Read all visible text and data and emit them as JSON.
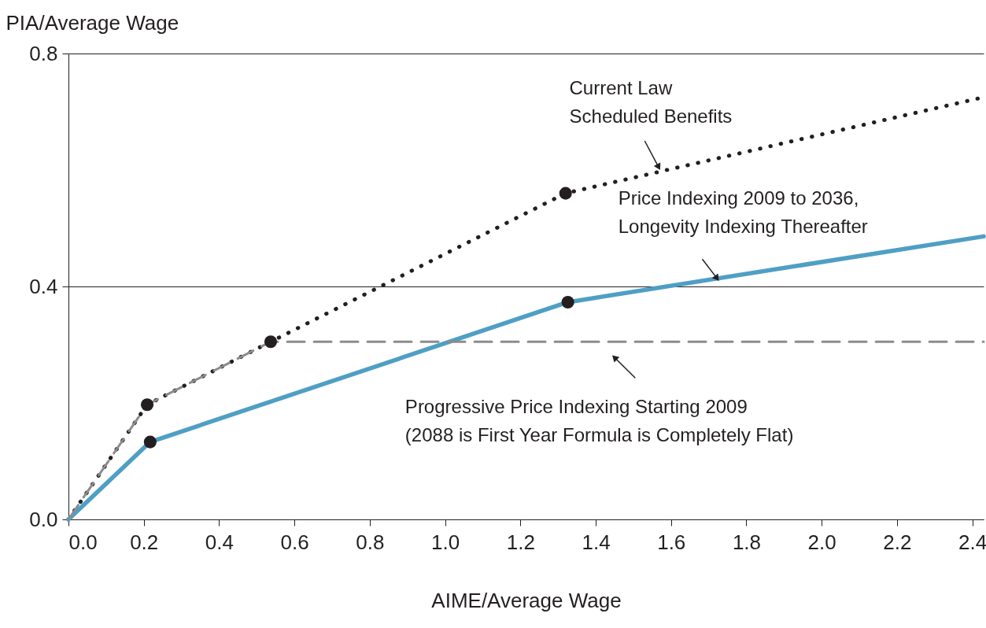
{
  "chart_data": {
    "type": "line",
    "xlabel": "AIME/Average Wage",
    "ylabel": "PIA/Average Wage",
    "xlim": [
      0,
      2.43
    ],
    "ylim": [
      0,
      0.8
    ],
    "xticks": [
      {
        "value": 0,
        "label": "0.0"
      },
      0.2,
      0.4,
      0.6,
      0.8,
      {
        "value": 1,
        "label": "1.0"
      },
      1.2,
      1.4,
      1.6,
      1.8,
      {
        "value": 2,
        "label": "2.0"
      },
      2.2,
      2.4
    ],
    "yticks": [
      {
        "value": 0,
        "label": "0.0"
      },
      {
        "value": 0.4,
        "label": "0.4"
      },
      {
        "value": 0.8,
        "label": "0.8"
      }
    ],
    "grid": "y",
    "annotations": [
      {
        "text": "Current Law\nScheduled Benefits",
        "x": 1.567,
        "y": 0.605
      },
      {
        "text": "Price Indexing 2009 to 2036,\nLongevity Indexing Thereafter",
        "x": 1.722,
        "y": 0.414
      },
      {
        "text": "Progressive Price Indexing Starting 2009\n(2088 is First Year Formula is Completely Flat)",
        "x": 1.45,
        "y": 0.278
      }
    ],
    "series": [
      {
        "color": "#231f20",
        "line_style": "dotted",
        "x": [
          0,
          0.209,
          0.537,
          1.32,
          2.43
        ],
        "values": [
          0,
          0.197,
          0.305,
          0.56,
          0.725
        ]
      },
      {
        "color": "#4f9fc4",
        "line_style": "solid",
        "x": [
          0,
          0.217,
          1.326,
          2.43
        ],
        "values": [
          0,
          0.133,
          0.373,
          0.486
        ]
      },
      {
        "color": "#8c8c8c",
        "line_style": "dashed",
        "x": [
          0,
          0.209,
          0.537,
          2.43
        ],
        "values": [
          0,
          0.197,
          0.305,
          0.305
        ]
      },
      {
        "type": "scatter",
        "color": "#231f20",
        "marker": "circle",
        "x": [
          0.209,
          0.537,
          1.32,
          0.217,
          1.326
        ],
        "values": [
          0.197,
          0.305,
          0.56,
          0.133,
          0.373
        ]
      }
    ]
  }
}
